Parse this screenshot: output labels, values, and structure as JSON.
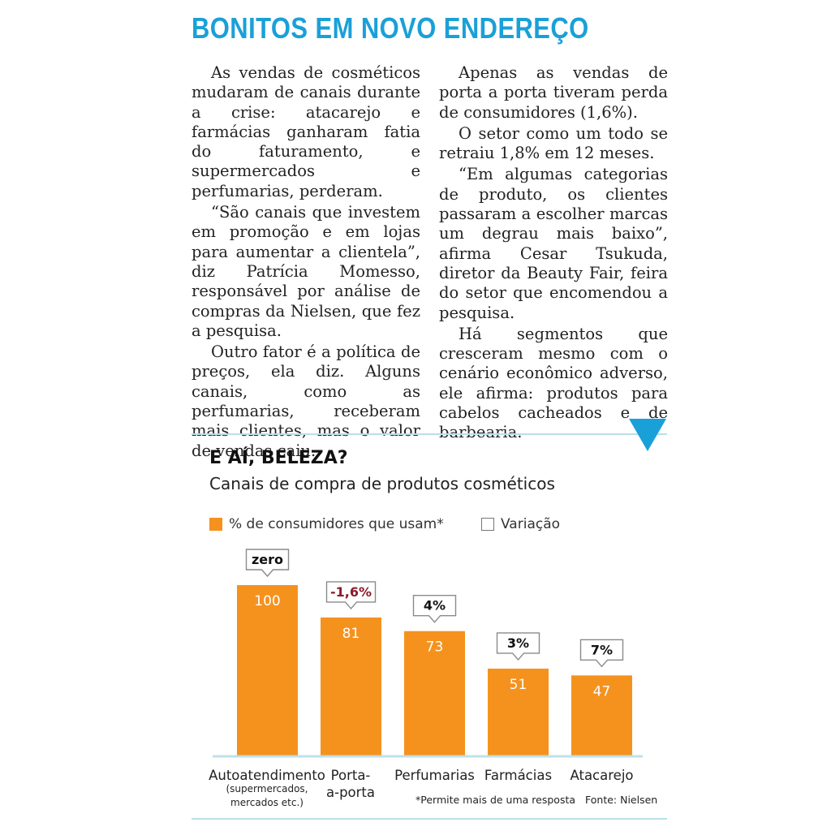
{
  "article": {
    "headline": "BONITOS EM NOVO ENDEREÇO",
    "left_paragraphs": [
      "As vendas de cosméticos mudaram de canais durante a crise: atacarejo e farmácias ganharam fatia do faturamento, e supermercados e perfumarias, perderam.",
      "“São canais que investem em promoção e em lojas para aumentar a clientela”, diz Patrícia Momesso, responsável por análise de compras da Nielsen, que fez a pesquisa.",
      "Outro fator é a política de preços, ela diz. Alguns canais, como as perfumarias, receberam mais clientes, mas o valor de vendas caiu."
    ],
    "right_paragraphs": [
      "Apenas as vendas de porta a porta tiveram perda de consumidores (1,6%).",
      "O setor como um todo se retraiu 1,8% em 12 meses.",
      "“Em algumas categorias de produto, os clientes passaram a escolher marcas um degrau mais baixo”, afirma Cesar Tsukuda, diretor da Beauty Fair, feira do setor que encomendou a pesquisa.",
      "Há segmentos que cresceram mesmo com o cenário econômico adverso, ele afirma: produtos para cabelos cacheados e de barbearia."
    ]
  },
  "chart_data": {
    "type": "bar",
    "title": "E AÍ, BELEZA?",
    "subtitle": "Canais de compra de produtos cosméticos",
    "legend": [
      {
        "label": "% de consumidores que usam*",
        "color": "#f5921e"
      },
      {
        "label": "Variação",
        "color": "#ffffff"
      }
    ],
    "legend_position": "top-left",
    "categories": [
      {
        "line1": "Autoatendimento",
        "line2": "(supermercados,",
        "line3": "mercados etc.)"
      },
      {
        "line1": "Porta-",
        "line2": "a-porta",
        "line3": ""
      },
      {
        "line1": "Perfumarias",
        "line2": "",
        "line3": ""
      },
      {
        "line1": "Farmácias",
        "line2": "",
        "line3": ""
      },
      {
        "line1": "Atacarejo",
        "line2": "",
        "line3": ""
      }
    ],
    "series": [
      {
        "name": "% de consumidores que usam*",
        "values": [
          100,
          81,
          73,
          51,
          47
        ]
      }
    ],
    "value_labels": [
      "100",
      "81",
      "73",
      "51",
      "47"
    ],
    "variation_labels": [
      "zero",
      "-1,6%",
      "4%",
      "3%",
      "7%"
    ],
    "variation_negative": [
      false,
      true,
      false,
      false,
      false
    ],
    "ylim": [
      0,
      100
    ],
    "grid": false,
    "footnote": "*Permite mais de uma resposta",
    "source": "Fonte: Nielsen"
  },
  "colors": {
    "bar": "#f5921e",
    "accent": "#1aa0d8",
    "negative": "#8b1a2b"
  }
}
